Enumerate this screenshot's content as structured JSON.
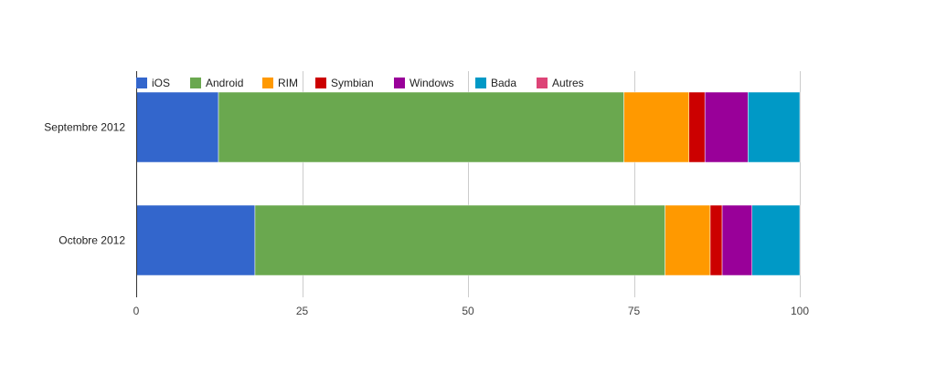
{
  "chart_data": {
    "type": "bar",
    "orientation": "horizontal",
    "stacked": true,
    "title": "",
    "xlabel": "",
    "ylabel": "",
    "xlim": [
      0,
      100
    ],
    "x_ticks": [
      0,
      25,
      50,
      75,
      100
    ],
    "grid": true,
    "legend_position": "top",
    "categories": [
      "Septembre 2012",
      "Octobre 2012"
    ],
    "series": [
      {
        "name": "iOS",
        "color": "#3366cc",
        "values": [
          12.4,
          17.9
        ]
      },
      {
        "name": "Android",
        "color": "#6aa84f",
        "values": [
          61.1,
          61.8
        ]
      },
      {
        "name": "RIM",
        "color": "#ff9900",
        "values": [
          9.8,
          6.8
        ]
      },
      {
        "name": "Symbian",
        "color": "#cc0000",
        "values": [
          2.4,
          1.8
        ]
      },
      {
        "name": "Windows",
        "color": "#990099",
        "values": [
          6.5,
          4.5
        ]
      },
      {
        "name": "Bada",
        "color": "#0099c6",
        "values": [
          7.8,
          7.2
        ]
      },
      {
        "name": "Autres",
        "color": "#dd4477",
        "values": [
          0,
          0
        ]
      }
    ]
  }
}
